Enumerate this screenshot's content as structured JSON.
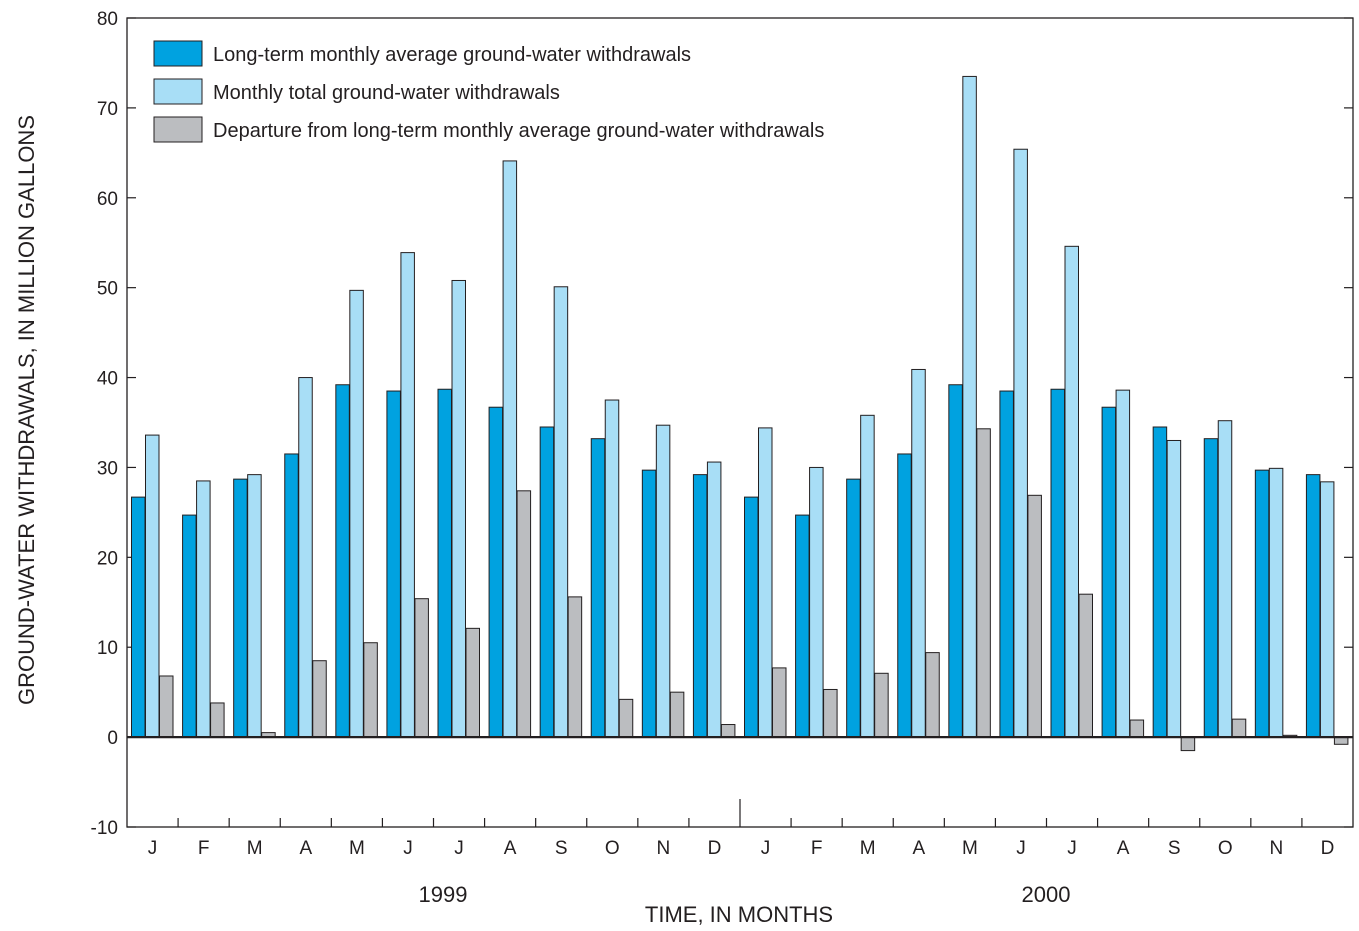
{
  "chart_data": {
    "type": "bar",
    "ylabel": "GROUND-WATER WITHDRAWALS, IN MILLION GALLONS",
    "xlabel": "TIME, IN MONTHS",
    "ylim": [
      -10,
      80
    ],
    "y_ticks": [
      "-10",
      "0",
      "10",
      "20",
      "30",
      "40",
      "50",
      "60",
      "70",
      "80"
    ],
    "year_labels": [
      "1999",
      "2000"
    ],
    "categories": [
      "J",
      "F",
      "M",
      "A",
      "M",
      "J",
      "J",
      "A",
      "S",
      "O",
      "N",
      "D",
      "J",
      "F",
      "M",
      "A",
      "M",
      "J",
      "J",
      "A",
      "S",
      "O",
      "N",
      "D"
    ],
    "legend_position": "top-left",
    "grid": false,
    "series": [
      {
        "name": "Long-term monthly average ground-water withdrawals",
        "color": "#00a2e0",
        "values": [
          26.7,
          24.7,
          28.7,
          31.5,
          39.2,
          38.5,
          38.7,
          36.7,
          34.5,
          33.2,
          29.7,
          29.2,
          26.7,
          24.7,
          28.7,
          31.5,
          39.2,
          38.5,
          38.7,
          36.7,
          34.5,
          33.2,
          29.7,
          29.2
        ]
      },
      {
        "name": "Monthly total ground-water withdrawals",
        "color": "#a8def6",
        "values": [
          33.6,
          28.5,
          29.2,
          40.0,
          49.7,
          53.9,
          50.8,
          64.1,
          50.1,
          37.5,
          34.7,
          30.6,
          34.4,
          30.0,
          35.8,
          40.9,
          73.5,
          65.4,
          54.6,
          38.6,
          33.0,
          35.2,
          29.9,
          28.4
        ]
      },
      {
        "name": "Departure from long-term monthly average ground-water withdrawals",
        "color": "#bbbdc0",
        "values": [
          6.8,
          3.8,
          0.5,
          8.5,
          10.5,
          15.4,
          12.1,
          27.4,
          15.6,
          4.2,
          5.0,
          1.4,
          7.7,
          5.3,
          7.1,
          9.4,
          34.3,
          26.9,
          15.9,
          1.9,
          -1.5,
          2.0,
          0.2,
          -0.8
        ]
      }
    ]
  }
}
